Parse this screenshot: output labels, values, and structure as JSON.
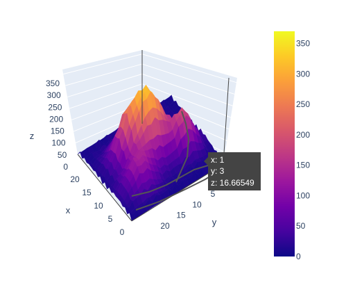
{
  "chart_data": {
    "type": "surface",
    "axes": {
      "x": {
        "label": "x",
        "range": [
          0,
          24
        ],
        "ticks": [
          "0",
          "5",
          "10",
          "15",
          "20"
        ]
      },
      "y": {
        "label": "y",
        "range": [
          0,
          24
        ],
        "ticks": [
          "5",
          "10",
          "15",
          "20"
        ]
      },
      "z": {
        "label": "z",
        "range": [
          0,
          370
        ],
        "ticks": [
          "0",
          "50",
          "100",
          "150",
          "200",
          "250",
          "300",
          "350"
        ]
      }
    },
    "colorscale": "plasma",
    "colorbar": {
      "range": [
        0,
        370
      ],
      "ticks": [
        "0",
        "50",
        "100",
        "150",
        "200",
        "250",
        "300",
        "350"
      ]
    },
    "grid": true,
    "hover": {
      "x": "x: 1",
      "y": "y: 3",
      "z": "z: 16.66549"
    }
  },
  "colors": {
    "scene_bg": "#e5ecf6",
    "grid": "#ffffff",
    "axis_line": "#444444",
    "tooltip_bg": "#444444"
  }
}
